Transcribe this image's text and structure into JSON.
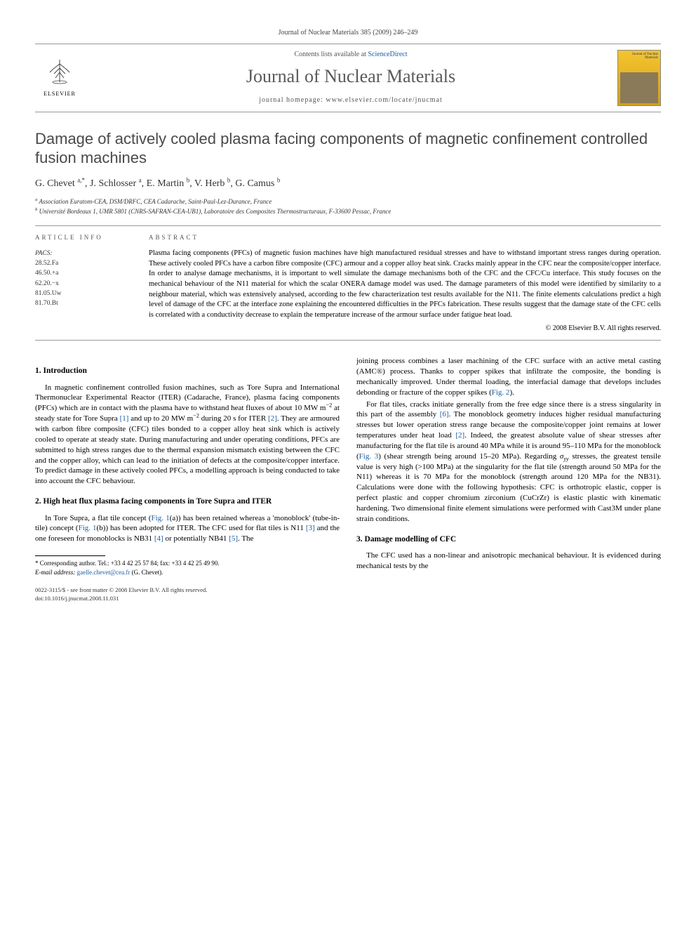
{
  "running_head": "Journal of Nuclear Materials 385 (2009) 246–249",
  "masthead": {
    "publisher": "ELSEVIER",
    "contents_prefix": "Contents lists available at ",
    "contents_link": "ScienceDirect",
    "journal": "Journal of Nuclear Materials",
    "homepage_label": "journal homepage: ",
    "homepage_url": "www.elsevier.com/locate/jnucmat",
    "cover_label": "Journal of Nuclear Materials"
  },
  "title": "Damage of actively cooled plasma facing components of magnetic confinement controlled fusion machines",
  "authors_html": "G. Chevet <sup>a,*</sup>, J. Schlosser <sup>a</sup>, E. Martin <sup>b</sup>, V. Herb <sup>b</sup>, G. Camus <sup>b</sup>",
  "affiliations": {
    "a": "Association Euratom-CEA, DSM/DRFC, CEA Cadarache, Saint-Paul-Lez-Durance, France",
    "b": "Université Bordeaux 1, UMR 5801 (CNRS-SAFRAN-CEA-UB1), Laboratoire des Composites Thermostructuraux, F-33600 Pessac, France"
  },
  "info_head": "ARTICLE INFO",
  "abs_head": "ABSTRACT",
  "pacs_label": "PACS:",
  "pacs": [
    "28.52.Fa",
    "46.50.+a",
    "62.20.−x",
    "81.05.Uw",
    "81.70.Bt"
  ],
  "abstract": "Plasma facing components (PFCs) of magnetic fusion machines have high manufactured residual stresses and have to withstand important stress ranges during operation. These actively cooled PFCs have a carbon fibre composite (CFC) armour and a copper alloy heat sink. Cracks mainly appear in the CFC near the composite/copper interface. In order to analyse damage mechanisms, it is important to well simulate the damage mechanisms both of the CFC and the CFC/Cu interface. This study focuses on the mechanical behaviour of the N11 material for which the scalar ONERA damage model was used. The damage parameters of this model were identified by similarity to a neighbour material, which was extensively analysed, according to the few characterization test results available for the N11. The finite elements calculations predict a high level of damage of the CFC at the interface zone explaining the encountered difficulties in the PFCs fabrication. These results suggest that the damage state of the CFC cells is correlated with a conductivity decrease to explain the temperature increase of the armour surface under fatigue heat load.",
  "copyright": "© 2008 Elsevier B.V. All rights reserved.",
  "sections": {
    "s1_head": "1. Introduction",
    "s1_p1": "In magnetic confinement controlled fusion machines, such as Tore Supra and International Thermonuclear Experimental Reactor (ITER) (Cadarache, France), plasma facing components (PFCs) which are in contact with the plasma have to withstand heat fluxes of about 10 MW m<sup>−2</sup> at steady state for Tore Supra <span class=\"ref-link\">[1]</span> and up to 20 MW m<sup>−2</sup> during 20 s for ITER <span class=\"ref-link\">[2]</span>. They are armoured with carbon fibre composite (CFC) tiles bonded to a copper alloy heat sink which is actively cooled to operate at steady state. During manufacturing and under operating conditions, PFCs are submitted to high stress ranges due to the thermal expansion mismatch existing between the CFC and the copper alloy, which can lead to the initiation of defects at the composite/copper interface. To predict damage in these actively cooled PFCs, a modelling approach is being conducted to take into account the CFC behaviour.",
    "s2_head": "2. High heat flux plasma facing components in Tore Supra and ITER",
    "s2_p1": "In Tore Supra, a flat tile concept (<span class=\"fig-link\">Fig. 1</span>(a)) has been retained whereas a 'monoblock' (tube-in-tile) concept (<span class=\"fig-link\">Fig. 1</span>(b)) has been adopted for ITER. The CFC used for flat tiles is N11 <span class=\"ref-link\">[3]</span> and the one foreseen for monoblocks is NB31 <span class=\"ref-link\">[4]</span> or potentially NB41 <span class=\"ref-link\">[5]</span>. The",
    "col2_p1": "joining process combines a laser machining of the CFC surface with an active metal casting (AMC®) process. Thanks to copper spikes that infiltrate the composite, the bonding is mechanically improved. Under thermal loading, the interfacial damage that develops includes debonding or fracture of the copper spikes (<span class=\"fig-link\">Fig. 2</span>).",
    "col2_p2": "For flat tiles, cracks initiate generally from the free edge since there is a stress singularity in this part of the assembly <span class=\"ref-link\">[6]</span>. The monoblock geometry induces higher residual manufacturing stresses but lower operation stress range because the composite/copper joint remains at lower temperatures under heat load <span class=\"ref-link\">[2]</span>. Indeed, the greatest absolute value of shear stresses after manufacturing for the flat tile is around 40 MPa while it is around 95–110 MPa for the monoblock (<span class=\"fig-link\">Fig. 3</span>) (shear strength being around 15–20 MPa). Regarding <i>σ<sub>yy</sub></i> stresses, the greatest tensile value is very high (>100 MPa) at the singularity for the flat tile (strength around 50 MPa for the N11) whereas it is 70 MPa for the monoblock (strength around 120 MPa for the NB31). Calculations were done with the following hypothesis: CFC is orthotropic elastic, copper is perfect plastic and copper chromium zirconium (CuCrZr) is elastic plastic with kinematic hardening. Two dimensional finite element simulations were performed with Cast3M under plane strain conditions.",
    "s3_head": "3. Damage modelling of CFC",
    "s3_p1": "The CFC used has a non-linear and anisotropic mechanical behaviour. It is evidenced during mechanical tests by the"
  },
  "corr": {
    "line1": "* Corresponding author. Tel.: +33 4 42 25 57 84; fax: +33 4 42 25 49 90.",
    "line2_label": "E-mail address: ",
    "line2_email": "gaelle.chevet@cea.fr",
    "line2_tail": " (G. Chevet)."
  },
  "footmatter": {
    "l1": "0022-3115/$ - see front matter © 2008 Elsevier B.V. All rights reserved.",
    "l2": "doi:10.1016/j.jnucmat.2008.11.031"
  }
}
